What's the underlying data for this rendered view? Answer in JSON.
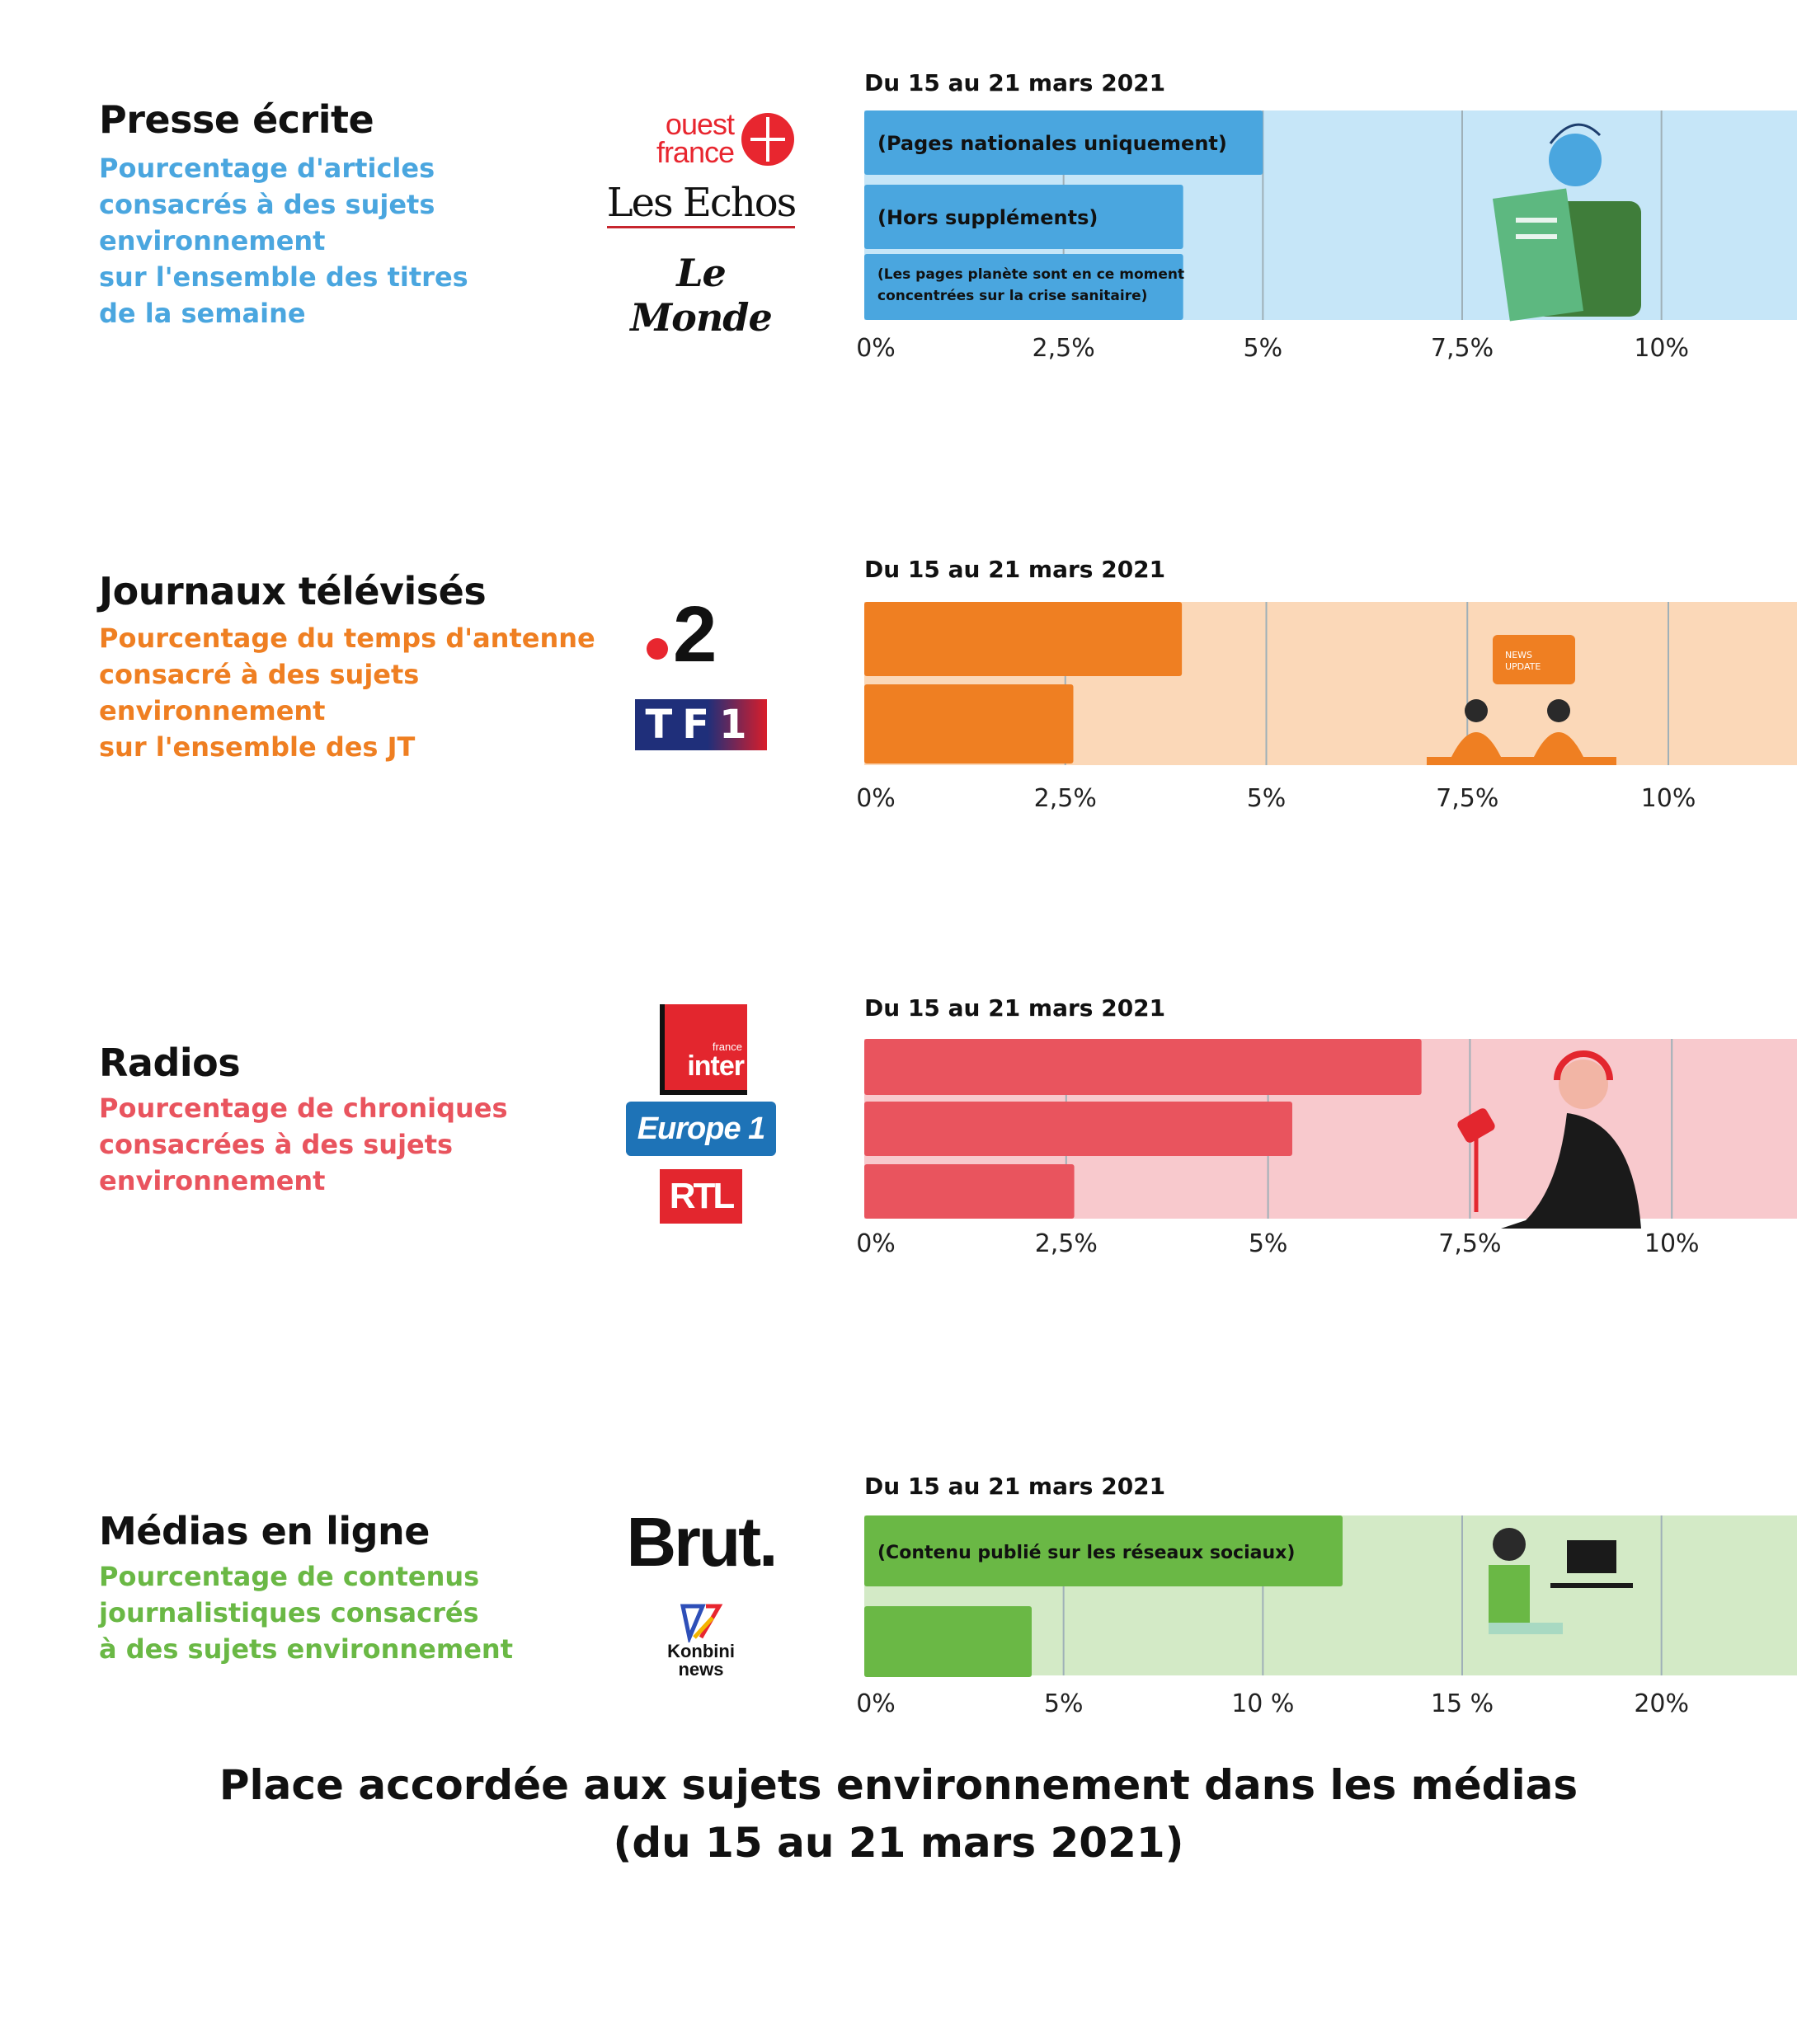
{
  "footer": {
    "line1": "Place accordée aux sujets environnement dans les médias",
    "line2": "(du 15 au 21 mars 2021)"
  },
  "colors": {
    "presse": "#4aa6df",
    "presse_bg": "#c6e6f8",
    "tv": "#ef7f22",
    "tv_bg": "#fbd8b8",
    "radio": "#e9545e",
    "radio_bg": "#f8c9cd",
    "online": "#6ab845",
    "online_bg": "#d3eac6",
    "gridline": "#8fa3ad"
  },
  "sections": [
    {
      "key": "presse",
      "title": "Presse écrite",
      "subtitle": [
        "Pourcentage d'articles",
        "consacrés à des sujets",
        "environnement",
        "sur l'ensemble des titres",
        "de la semaine"
      ],
      "logos": [
        "ouest france",
        "Les Echos",
        "Le Monde"
      ]
    },
    {
      "key": "tv",
      "title": "Journaux télévisés",
      "subtitle": [
        "Pourcentage du temps d'antenne",
        "consacré à des sujets",
        "environnement",
        "sur l'ensemble des JT"
      ],
      "logos": [
        "2",
        "TF1"
      ]
    },
    {
      "key": "radio",
      "title": "Radios",
      "subtitle": [
        "Pourcentage de chroniques",
        "consacrées à des sujets",
        "environnement"
      ],
      "logos": [
        "inter",
        "Europe 1",
        "RTL"
      ],
      "logo_sub": "france"
    },
    {
      "key": "online",
      "title": "Médias en ligne",
      "subtitle": [
        "Pourcentage de contenus",
        "journalistiques consacrés",
        "à des sujets environnement"
      ],
      "logos": [
        "Brut.",
        "Konbini",
        "news"
      ]
    }
  ],
  "chart_data": [
    {
      "type": "bar",
      "orientation": "horizontal",
      "title": "Du 15 au 21 mars 2021",
      "categories": [
        "Ouest-France",
        "Les Echos",
        "Le Monde"
      ],
      "values": [
        5.0,
        4.0,
        4.0
      ],
      "bar_labels": [
        "(Pages nationales uniquement)",
        "(Hors suppléments)",
        "(Les pages planète sont en ce moment concentrées sur la crise sanitaire)"
      ],
      "xlim": [
        0,
        11.7
      ],
      "ticks": [
        0,
        2.5,
        5,
        7.5,
        10
      ],
      "tick_labels": [
        "0%",
        "2,5%",
        "5%",
        "7,5%",
        "10%"
      ],
      "color": "#4aa6df",
      "bg": "#c6e6f8",
      "illustration": "reader"
    },
    {
      "type": "bar",
      "orientation": "horizontal",
      "title": "Du 15 au 21 mars 2021",
      "categories": [
        "France 2",
        "TF1"
      ],
      "values": [
        3.95,
        2.6
      ],
      "bar_labels": [
        "",
        ""
      ],
      "xlim": [
        0,
        11.6
      ],
      "ticks": [
        0,
        2.5,
        5,
        7.5,
        10
      ],
      "tick_labels": [
        "0%",
        "2,5%",
        "5%",
        "7,5%",
        "10%"
      ],
      "color": "#ef7f22",
      "bg": "#fbd8b8",
      "illustration": "news",
      "illustration_text": [
        "NEWS",
        "UPDATE"
      ]
    },
    {
      "type": "bar",
      "orientation": "horizontal",
      "title": "Du 15 au 21 mars 2021",
      "categories": [
        "France Inter",
        "Europe 1",
        "RTL"
      ],
      "values": [
        6.9,
        5.3,
        2.6
      ],
      "bar_labels": [
        "",
        "",
        ""
      ],
      "xlim": [
        0,
        11.55
      ],
      "ticks": [
        0,
        2.5,
        5,
        7.5,
        10
      ],
      "tick_labels": [
        "0%",
        "2,5%",
        "5%",
        "7,5%",
        "10%"
      ],
      "color": "#e9545e",
      "bg": "#f8c9cd",
      "illustration": "radio"
    },
    {
      "type": "bar",
      "orientation": "horizontal",
      "title": "Du 15 au 21 mars 2021",
      "categories": [
        "Brut",
        "Konbini news"
      ],
      "values": [
        12.0,
        4.2
      ],
      "bar_labels": [
        "(Contenu publié sur les réseaux sociaux)",
        ""
      ],
      "xlim": [
        0,
        23.4
      ],
      "ticks": [
        0,
        5,
        10,
        15,
        20
      ],
      "tick_labels": [
        "0%",
        "5%",
        "10 %",
        "15 %",
        "20%"
      ],
      "color": "#6ab845",
      "bg": "#d3eac6",
      "illustration": "computer"
    }
  ]
}
